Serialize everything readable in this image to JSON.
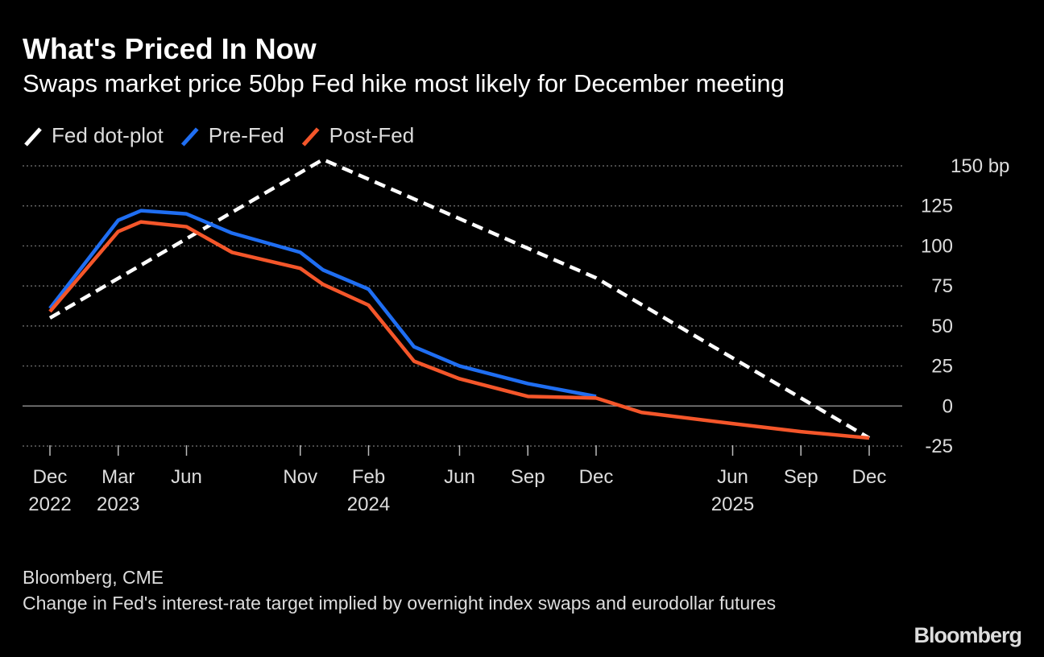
{
  "chart_data": {
    "type": "line",
    "title": "What's Priced In Now",
    "subtitle": "Swaps market price 50bp Fed hike most likely for December meeting",
    "source": "Bloomberg, CME",
    "note": "Change in Fed's interest-rate target implied by overnight index swaps and eurodollar futures",
    "brand": "Bloomberg",
    "legend": "top-left",
    "grid": true,
    "xlim": [
      "2022-12",
      "2025-12"
    ],
    "xticks": [
      {
        "value": "2022-12",
        "label": "Dec",
        "year": "2022"
      },
      {
        "value": "2023-03",
        "label": "Mar",
        "year": "2023"
      },
      {
        "value": "2023-06",
        "label": "Jun"
      },
      {
        "value": "2023-11",
        "label": "Nov"
      },
      {
        "value": "2024-02",
        "label": "Feb",
        "year": "2024"
      },
      {
        "value": "2024-06",
        "label": "Jun"
      },
      {
        "value": "2024-09",
        "label": "Sep"
      },
      {
        "value": "2024-12",
        "label": "Dec"
      },
      {
        "value": "2025-06",
        "label": "Jun",
        "year": "2025"
      },
      {
        "value": "2025-09",
        "label": "Sep"
      },
      {
        "value": "2025-12",
        "label": "Dec"
      }
    ],
    "ylim": [
      -25,
      150
    ],
    "yticks": [
      -25,
      0,
      25,
      50,
      75,
      100,
      125,
      {
        "value": 150,
        "label": "150 bp"
      }
    ],
    "series": [
      {
        "name": "Fed dot-plot",
        "color": "#ffffff",
        "style": "dashed",
        "x": [
          "2022-12",
          "2023-12",
          "2024-12",
          "2025-12"
        ],
        "values": [
          55,
          154,
          80,
          -20
        ]
      },
      {
        "name": "Pre-Fed",
        "color": "#1f6ef2",
        "style": "solid",
        "x": [
          "2022-12",
          "2023-03",
          "2023-04",
          "2023-06",
          "2023-08",
          "2023-11",
          "2023-12",
          "2024-02",
          "2024-04",
          "2024-06",
          "2024-09",
          "2024-12"
        ],
        "values": [
          61,
          116,
          122,
          120,
          108,
          96,
          85,
          73,
          37,
          25,
          14,
          6
        ]
      },
      {
        "name": "Post-Fed",
        "color": "#f4562a",
        "style": "solid",
        "x": [
          "2022-12",
          "2023-03",
          "2023-04",
          "2023-06",
          "2023-08",
          "2023-11",
          "2023-12",
          "2024-02",
          "2024-04",
          "2024-06",
          "2024-09",
          "2024-12",
          "2025-02",
          "2025-06",
          "2025-09",
          "2025-12"
        ],
        "values": [
          59,
          109,
          115,
          112,
          96,
          86,
          76,
          63,
          28,
          17,
          6,
          5,
          -4,
          -11,
          -16,
          -20
        ]
      }
    ]
  }
}
